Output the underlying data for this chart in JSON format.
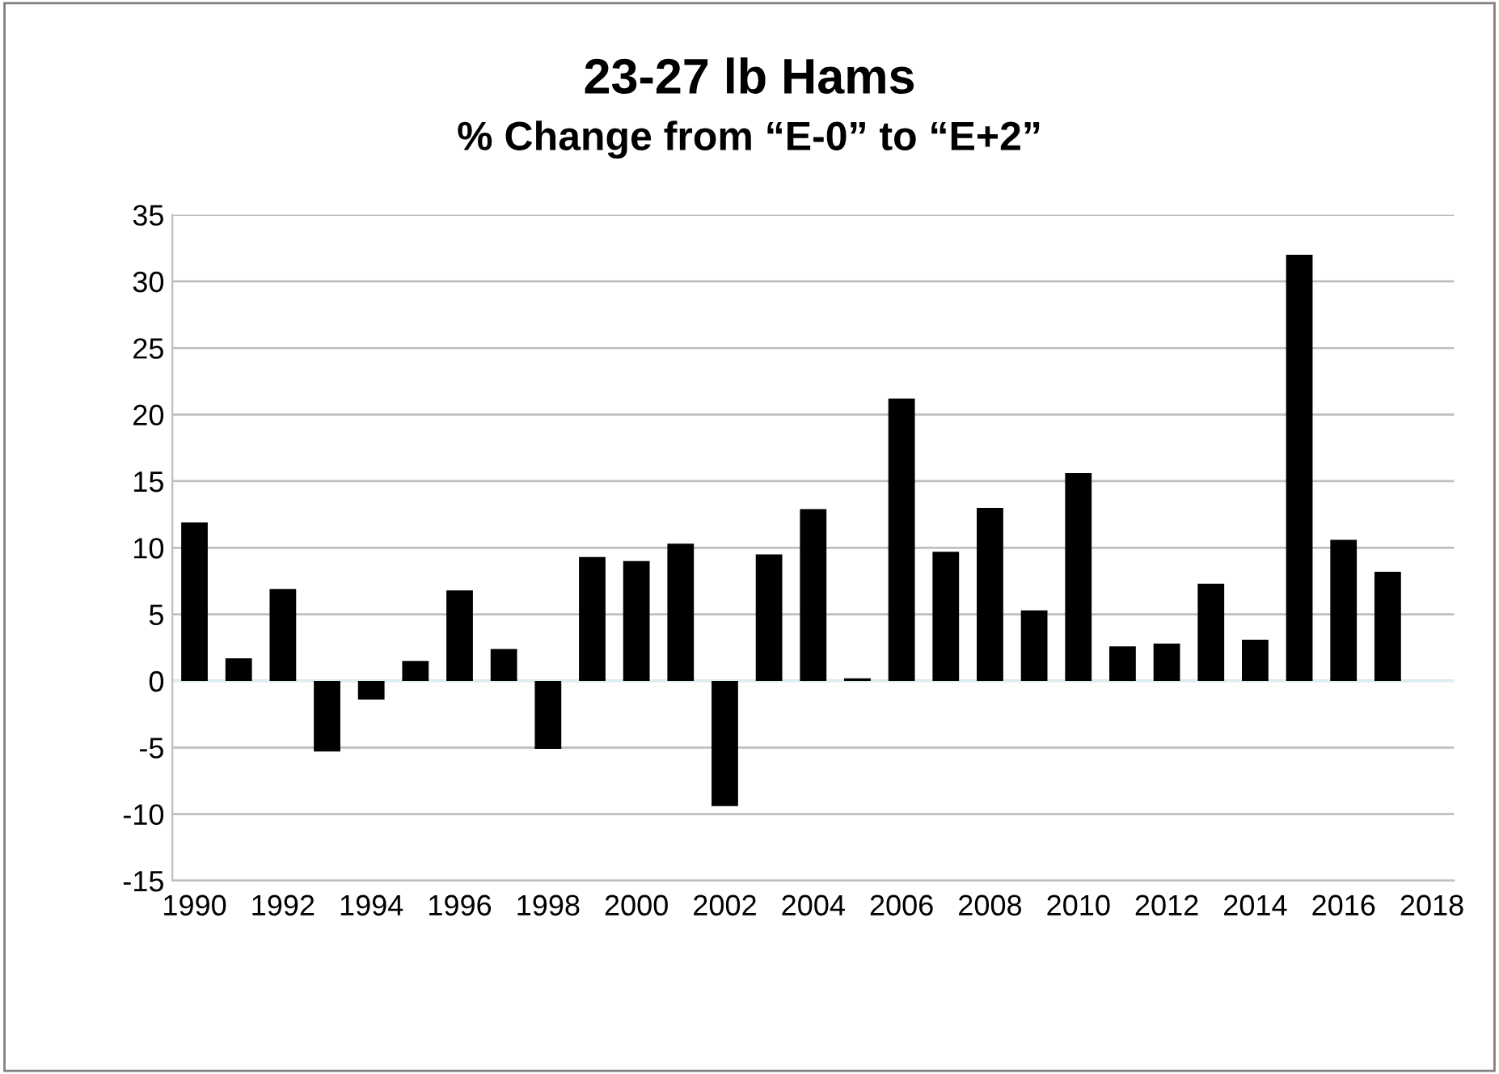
{
  "chart_data": {
    "type": "bar",
    "title": "23-27 lb Hams",
    "subtitle": "% Change from “E-0” to “E+2”",
    "categories": [
      "1990",
      null,
      "1992",
      null,
      "1994",
      null,
      "1996",
      null,
      "1998",
      null,
      "2000",
      null,
      "2002",
      null,
      "2004",
      null,
      "2006",
      null,
      "2008",
      null,
      "2010",
      null,
      "2012",
      null,
      "2014",
      null,
      "2016",
      null,
      "2018"
    ],
    "values": [
      11.9,
      1.7,
      6.9,
      -5.3,
      -1.4,
      1.5,
      6.8,
      2.4,
      -5.1,
      9.3,
      9.0,
      10.3,
      -9.4,
      9.5,
      12.9,
      0.2,
      21.2,
      9.7,
      13.0,
      5.3,
      15.6,
      2.6,
      2.8,
      7.3,
      3.1,
      32.0,
      10.6,
      8.2,
      null
    ],
    "color": "#000000",
    "ylim": [
      -15,
      35
    ],
    "yticks": [
      -15,
      -10,
      -5,
      0,
      5,
      10,
      15,
      20,
      25,
      30,
      35
    ],
    "grid": "y"
  }
}
